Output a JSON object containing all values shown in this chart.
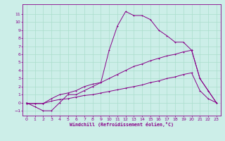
{
  "xlabel": "Windchill (Refroidissement éolien,°C)",
  "xlim": [
    -0.5,
    23.5
  ],
  "ylim": [
    -1.6,
    12.2
  ],
  "xticks": [
    0,
    1,
    2,
    3,
    4,
    5,
    6,
    7,
    8,
    9,
    10,
    11,
    12,
    13,
    14,
    15,
    16,
    17,
    18,
    19,
    20,
    21,
    22,
    23
  ],
  "yticks": [
    -1,
    0,
    1,
    2,
    3,
    4,
    5,
    6,
    7,
    8,
    9,
    10,
    11
  ],
  "background_color": "#cceee8",
  "grid_color": "#aaddcc",
  "line_color": "#880088",
  "line1_x": [
    0,
    1,
    2,
    3,
    4,
    5,
    6,
    7,
    8,
    9,
    10,
    11,
    12,
    13,
    14,
    15,
    16,
    17,
    18,
    19,
    20,
    21,
    22,
    23
  ],
  "line1_y": [
    0,
    -0.5,
    -1,
    -1,
    0,
    1,
    1,
    1.5,
    2,
    2.5,
    6.5,
    9.5,
    11.3,
    10.8,
    10.8,
    10.3,
    9,
    8.3,
    7.5,
    7.5,
    6.5,
    3,
    1.5,
    0
  ],
  "line2_x": [
    0,
    1,
    2,
    3,
    4,
    5,
    6,
    7,
    8,
    9,
    10,
    11,
    12,
    13,
    14,
    15,
    16,
    17,
    18,
    19,
    20,
    21,
    22,
    23
  ],
  "line2_y": [
    -0.1,
    -0.1,
    -0.1,
    0.5,
    1.0,
    1.2,
    1.5,
    2.0,
    2.3,
    2.5,
    3.0,
    3.5,
    4.0,
    4.5,
    4.8,
    5.2,
    5.5,
    5.8,
    6.0,
    6.3,
    6.5,
    3.0,
    1.5,
    0.0
  ],
  "line3_x": [
    0,
    1,
    2,
    3,
    4,
    5,
    6,
    7,
    8,
    9,
    10,
    11,
    12,
    13,
    14,
    15,
    16,
    17,
    18,
    19,
    20,
    21,
    22,
    23
  ],
  "line3_y": [
    -0.1,
    -0.1,
    -0.1,
    0.2,
    0.4,
    0.5,
    0.7,
    0.9,
    1.0,
    1.2,
    1.4,
    1.6,
    1.8,
    2.0,
    2.2,
    2.5,
    2.7,
    3.0,
    3.2,
    3.5,
    3.7,
    1.5,
    0.5,
    0.0
  ]
}
